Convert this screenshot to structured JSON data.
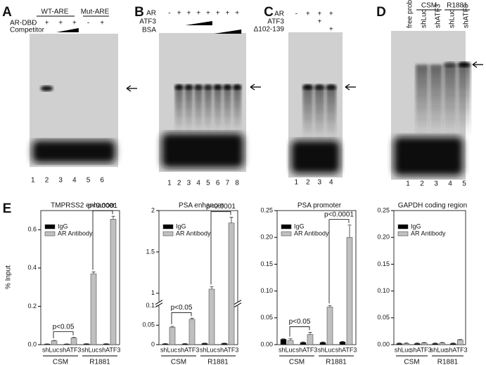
{
  "panels": {
    "A": {
      "letter": "A",
      "wt": "WT-ARE",
      "mut": "Mut-ARE",
      "row1": "AR-DBD",
      "row2": "Competitor",
      "signs": [
        "-",
        "+",
        "+",
        "+",
        "-",
        "+"
      ],
      "lanes": [
        "1",
        "2",
        "3",
        "4",
        "5",
        "6"
      ]
    },
    "B": {
      "letter": "B",
      "row1": "AR",
      "row2": "ATF3",
      "row3": "BSA",
      "signs": [
        "-",
        "+",
        "+",
        "+",
        "+",
        "+",
        "+",
        "+"
      ],
      "lanes": [
        "1",
        "2",
        "3",
        "4",
        "5",
        "6",
        "7",
        "8"
      ]
    },
    "C": {
      "letter": "C",
      "row1": "AR",
      "row2": "ATF3",
      "row3": "Δ102-139",
      "signs1": [
        "-",
        "+",
        "+",
        "+"
      ],
      "signs2": [
        null,
        null,
        "+",
        null
      ],
      "signs3": [
        null,
        null,
        null,
        "+"
      ],
      "lanes": [
        "1",
        "2",
        "3",
        "4"
      ]
    },
    "D": {
      "letter": "D",
      "csm": "CSM",
      "r1881": "R1881",
      "lane_labels": [
        "free probe",
        "shLuc",
        "shATF3",
        "shLuc",
        "shATF3"
      ],
      "lanes": [
        "1",
        "2",
        "3",
        "4",
        "5"
      ]
    },
    "E": {
      "letter": "E",
      "ylabel": "% Input"
    }
  },
  "chart_data": [
    {
      "type": "bar",
      "title": "TMPRSS2 enhancer",
      "categories": [
        "shLuc",
        "shATF3",
        "shLuc",
        "shATF3"
      ],
      "groups": [
        "CSM",
        "R1881"
      ],
      "series": [
        {
          "name": "IgG",
          "color": "#000000",
          "values": [
            0.003,
            0.003,
            0.004,
            0.004
          ],
          "errors": [
            0.001,
            0.001,
            0.001,
            0.001
          ]
        },
        {
          "name": "AR Antibody",
          "color": "#c0c0c0",
          "values": [
            0.02,
            0.035,
            0.37,
            0.655
          ],
          "errors": [
            0.002,
            0.003,
            0.01,
            0.015
          ]
        }
      ],
      "ylim": [
        0,
        0.7
      ],
      "yticks": [
        {
          "value": 0,
          "label": "0.0"
        },
        0.2,
        0.4,
        0.6
      ],
      "annotations": [
        "p<0.05",
        "p<0.0001"
      ],
      "legend": "upper left"
    },
    {
      "type": "bar",
      "title": "PSA enhancer",
      "categories": [
        "shLuc",
        "shATF3",
        "shLuc",
        "shATF3"
      ],
      "groups": [
        "CSM",
        "R1881"
      ],
      "series": [
        {
          "name": "IgG",
          "color": "#000000",
          "values": [
            0.002,
            0.002,
            0.003,
            0.003
          ],
          "errors": [
            0.001,
            0.001,
            0.001,
            0.001
          ]
        },
        {
          "name": "AR Antibody",
          "color": "#c0c0c0",
          "values": [
            0.045,
            0.065,
            1.05,
            1.85
          ],
          "errors": [
            0.002,
            0.003,
            0.03,
            0.07
          ]
        }
      ],
      "ylim": [
        0,
        2
      ],
      "ybreak": [
        0.1,
        0.9
      ],
      "yticks": [
        0,
        0.05,
        0.1,
        1,
        1.5,
        2
      ],
      "annotations": [
        "p<0.05",
        "p<0.0001"
      ],
      "legend": "upper left"
    },
    {
      "type": "bar",
      "title": "PSA promoter",
      "categories": [
        "shLuc",
        "shATF3",
        "shLuc",
        "shATF3"
      ],
      "groups": [
        "CSM",
        "R1881"
      ],
      "series": [
        {
          "name": "IgG",
          "color": "#000000",
          "values": [
            0.01,
            0.004,
            0.004,
            0.005
          ],
          "errors": [
            0.001,
            0.001,
            0.001,
            0.001
          ]
        },
        {
          "name": "AR Antibody",
          "color": "#c0c0c0",
          "values": [
            0.008,
            0.019,
            0.07,
            0.2
          ],
          "errors": [
            0.003,
            0.004,
            0.003,
            0.023
          ]
        }
      ],
      "ylim": [
        0,
        0.25
      ],
      "yticks": [
        {
          "value": 0,
          "label": "0.00"
        },
        0.05,
        {
          "value": 0.1,
          "label": "0.10"
        },
        0.15,
        {
          "value": 0.2,
          "label": "0.20"
        },
        0.25
      ],
      "annotations": [
        "p<0.05",
        "p<0.0001"
      ],
      "legend": "upper left"
    },
    {
      "type": "bar",
      "title": "GAPDH coding region",
      "categories": [
        "shLuc",
        "shATF3",
        "shLuc",
        "shATF3"
      ],
      "groups": [
        "CSM",
        "R1881"
      ],
      "series": [
        {
          "name": "IgG",
          "color": "#000000",
          "values": [
            0.002,
            0.002,
            0.002,
            0.002
          ],
          "errors": [
            0.001,
            0.001,
            0.001,
            0.001
          ]
        },
        {
          "name": "AR Antibody",
          "color": "#c0c0c0",
          "values": [
            0.002,
            0.003,
            0.003,
            0.009
          ],
          "errors": [
            0.001,
            0.001,
            0.001,
            0.001
          ]
        }
      ],
      "ylim": [
        0,
        0.25
      ],
      "yticks": [
        {
          "value": 0,
          "label": "0.00"
        },
        0.05,
        {
          "value": 0.1,
          "label": "0.10"
        },
        0.15,
        {
          "value": 0.2,
          "label": "0.20"
        },
        0.25
      ],
      "legend": "upper left"
    }
  ]
}
